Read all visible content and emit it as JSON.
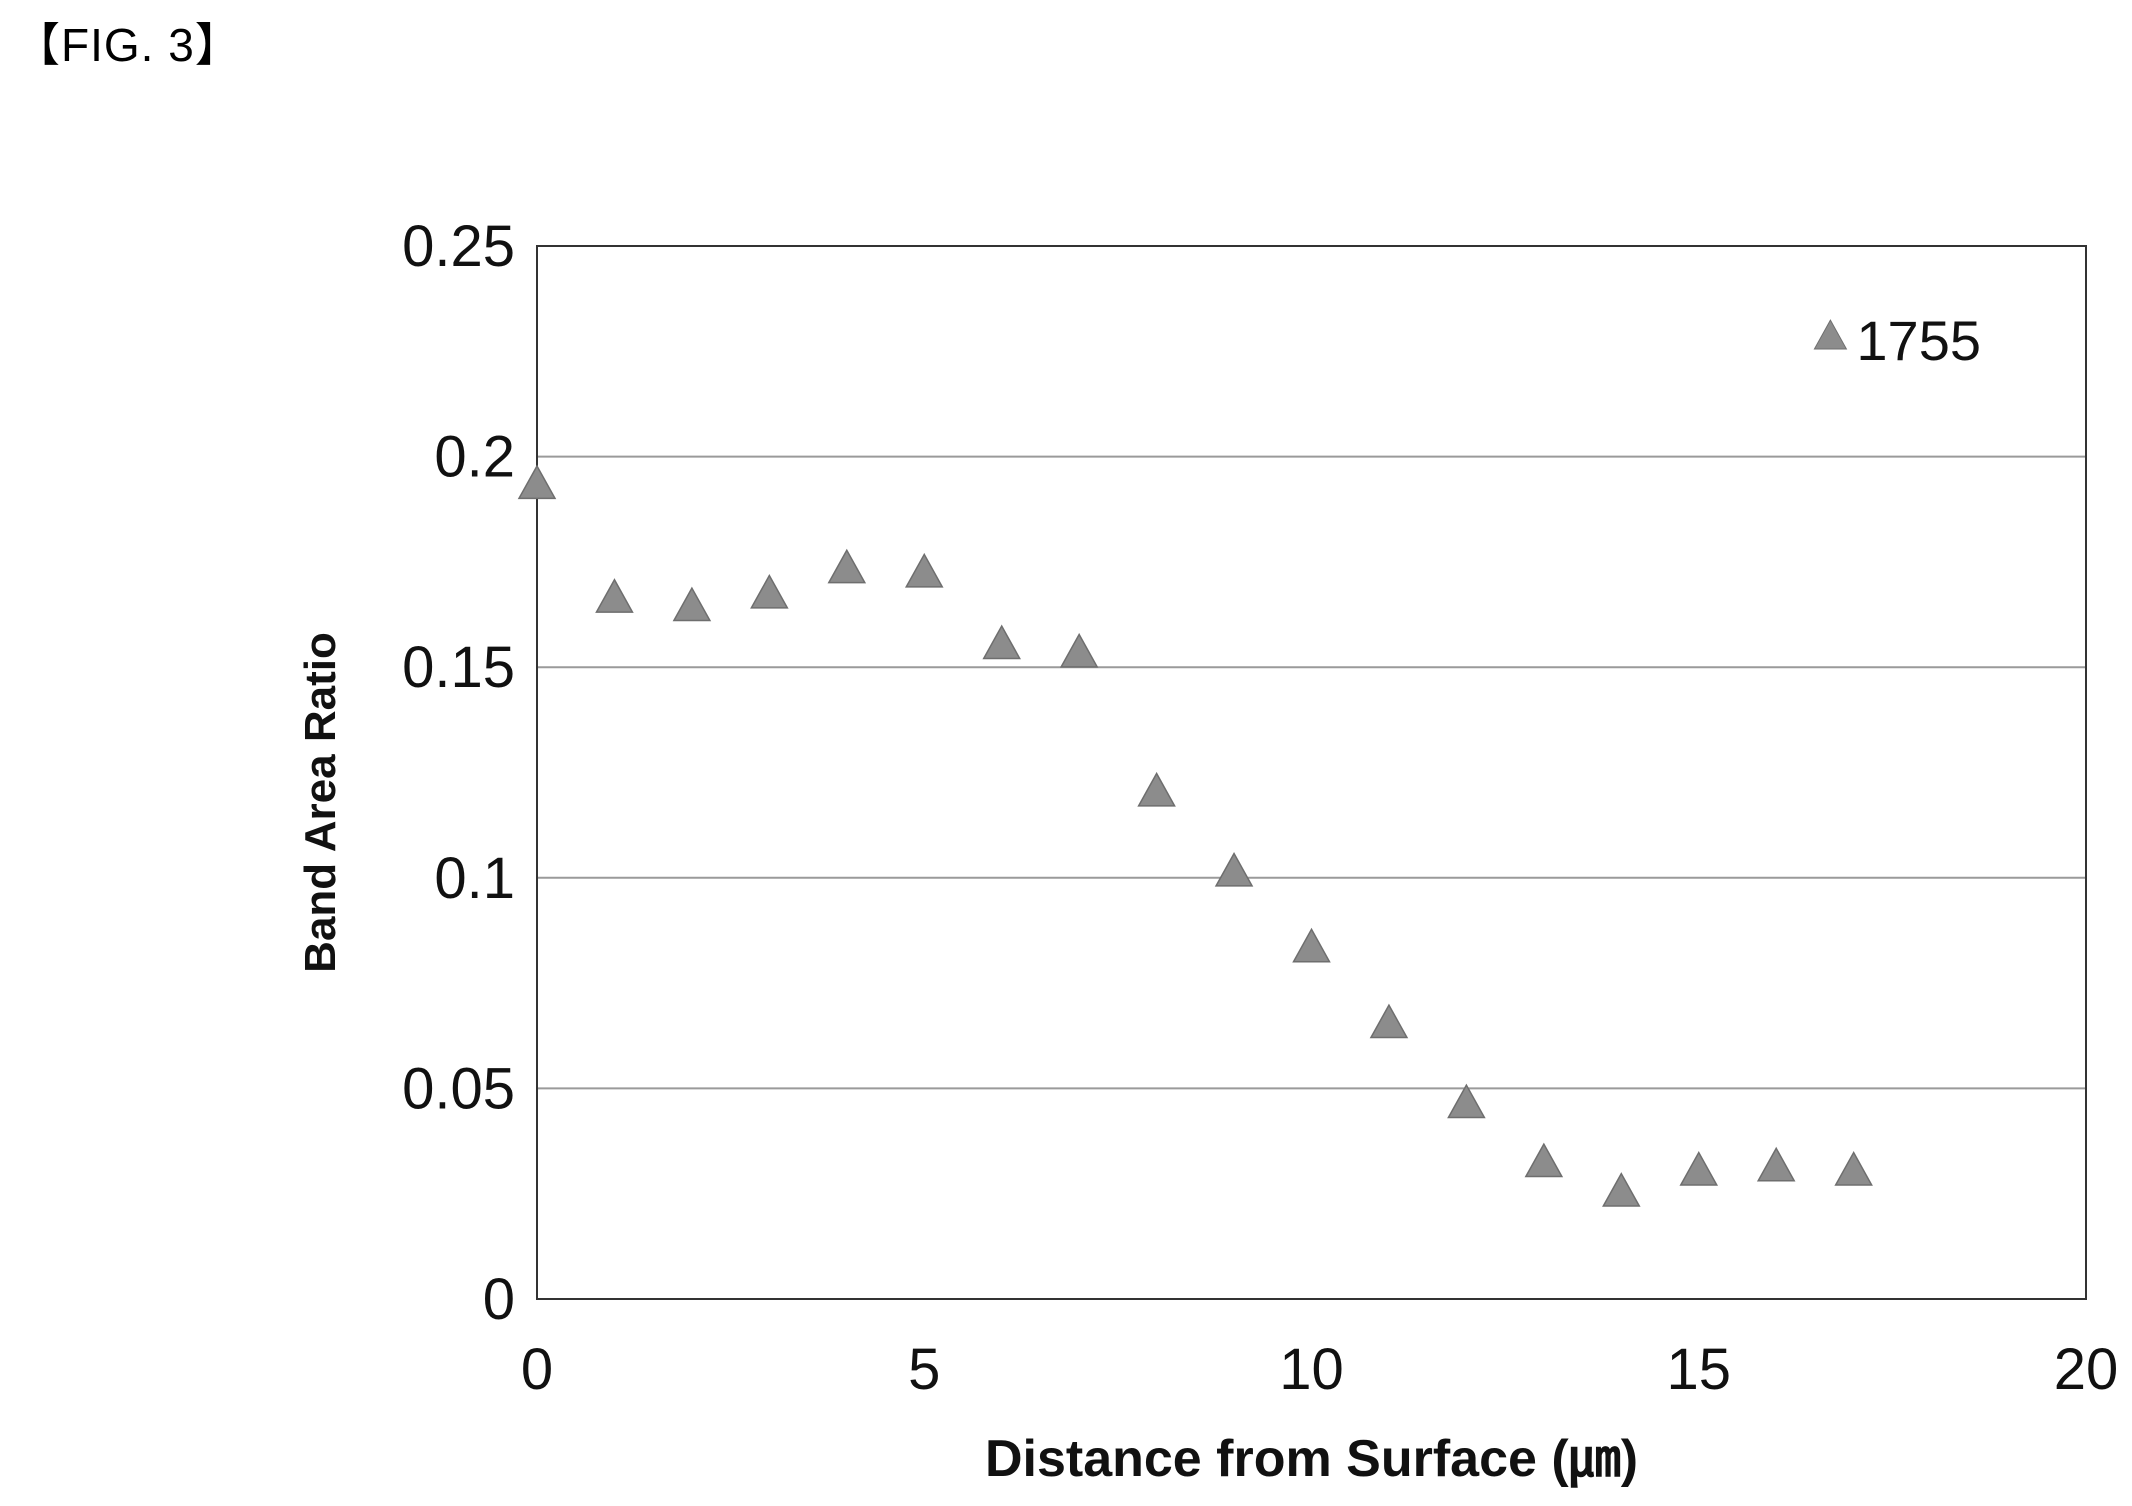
{
  "figure_label": "【FIG. 3】",
  "chart_data": {
    "type": "scatter",
    "title": "",
    "xlabel": "Distance from Surface (㎛)",
    "ylabel": "Band Area Ratio",
    "xlim": [
      0,
      20
    ],
    "ylim": [
      0,
      0.25
    ],
    "xticks": [
      0,
      5,
      10,
      15,
      20
    ],
    "xtick_labels": [
      "0",
      "5",
      "10",
      "15",
      "20"
    ],
    "yticks": [
      0,
      0.05,
      0.1,
      0.15,
      0.2,
      0.25
    ],
    "ytick_labels": [
      "0",
      "0.05",
      "0.1",
      "0.15",
      "0.2",
      "0.25"
    ],
    "grid": "horizontal",
    "legend_position": "top-right",
    "marker_color": "#8c8c8c",
    "series": [
      {
        "name": "1755",
        "marker": "triangle",
        "x": [
          0,
          1,
          2,
          3,
          4,
          5,
          6,
          7,
          8,
          9,
          10,
          11,
          12,
          13,
          14,
          15,
          16,
          17
        ],
        "y": [
          0.193,
          0.166,
          0.164,
          0.167,
          0.173,
          0.172,
          0.155,
          0.153,
          0.12,
          0.101,
          0.083,
          0.065,
          0.046,
          0.032,
          0.025,
          0.03,
          0.031,
          0.03
        ]
      }
    ]
  }
}
